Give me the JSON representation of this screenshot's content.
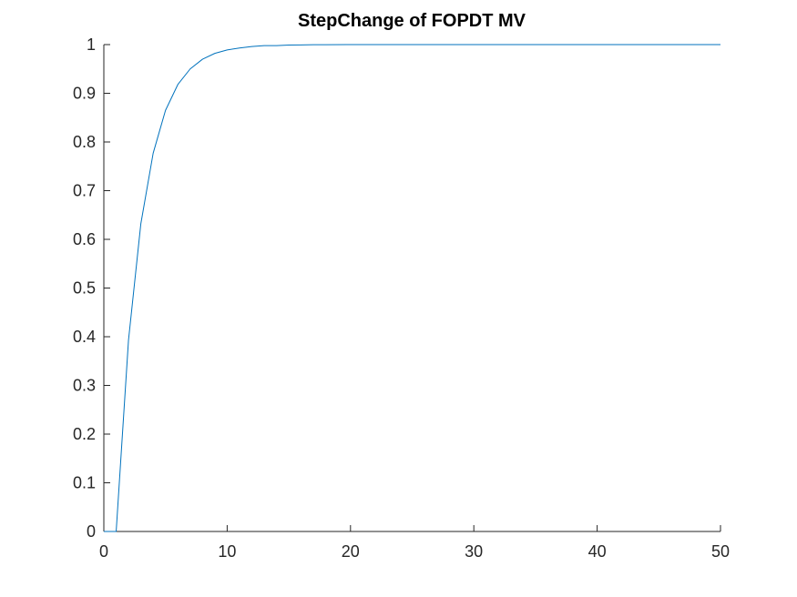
{
  "figure": {
    "background": "#ffffff"
  },
  "chart_data": {
    "type": "line",
    "title": "StepChange of FOPDT MV",
    "xlabel": "",
    "ylabel": "",
    "xlim": [
      0,
      50
    ],
    "ylim": [
      0,
      1
    ],
    "xticks": [
      0,
      10,
      20,
      30,
      40,
      50
    ],
    "yticks": [
      0,
      0.1,
      0.2,
      0.3,
      0.4,
      0.5,
      0.6,
      0.7,
      0.8,
      0.9,
      1
    ],
    "xtick_labels": [
      "0",
      "10",
      "20",
      "30",
      "40",
      "50"
    ],
    "ytick_labels": [
      "0",
      "0.1",
      "0.2",
      "0.3",
      "0.4",
      "0.5",
      "0.6",
      "0.7",
      "0.8",
      "0.9",
      "1"
    ],
    "grid": false,
    "axis_color": "#262626",
    "series": [
      {
        "color": "#0072bd",
        "x": [
          0,
          1,
          2,
          3,
          4,
          5,
          6,
          7,
          8,
          9,
          10,
          11,
          12,
          13,
          14,
          15,
          16,
          17,
          18,
          20,
          25,
          30,
          35,
          40,
          45,
          50
        ],
        "y": [
          0,
          0,
          0.393,
          0.632,
          0.777,
          0.865,
          0.918,
          0.95,
          0.97,
          0.982,
          0.989,
          0.993,
          0.996,
          0.998,
          0.998,
          0.999,
          0.9994,
          0.9997,
          0.9998,
          0.99995,
          1,
          1,
          1,
          1,
          1,
          1
        ]
      }
    ]
  }
}
